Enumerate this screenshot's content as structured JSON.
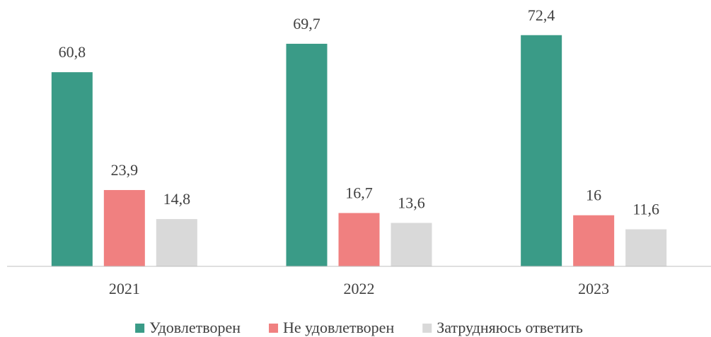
{
  "chart_data": {
    "type": "bar",
    "categories": [
      "2021",
      "2022",
      "2023"
    ],
    "series": [
      {
        "name": "Удовлетворен",
        "color": "#3a9b87",
        "values": [
          60.8,
          69.7,
          72.4
        ],
        "value_labels": [
          "60,8",
          "69,7",
          "72,4"
        ]
      },
      {
        "name": "Не удовлетворен",
        "color": "#f08080",
        "values": [
          23.9,
          16.7,
          16
        ],
        "value_labels": [
          "23,9",
          "16,7",
          "16"
        ]
      },
      {
        "name": "Затрудняюсь ответить",
        "color": "#d9d9d9",
        "values": [
          14.8,
          13.6,
          11.6
        ],
        "value_labels": [
          "14,8",
          "13,6",
          "11,6"
        ]
      }
    ],
    "ylim": [
      0,
      80
    ],
    "legend": "bottom"
  }
}
